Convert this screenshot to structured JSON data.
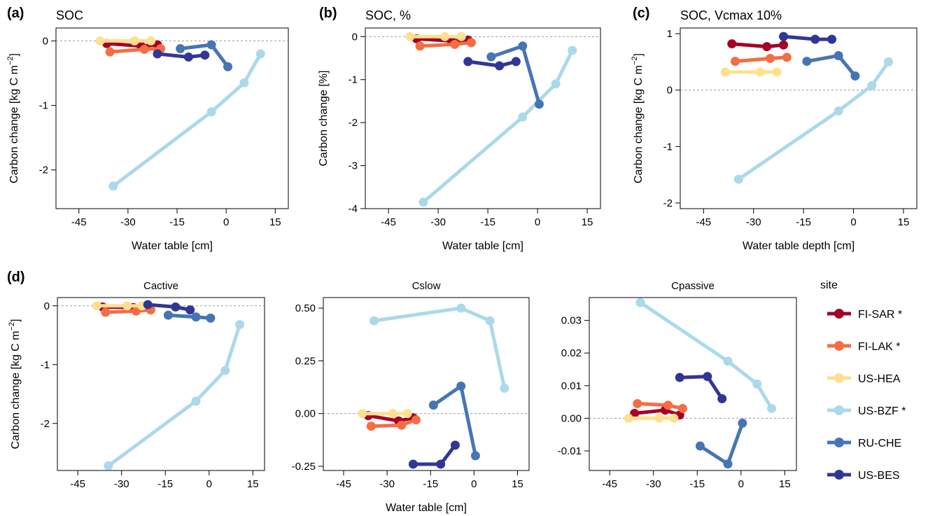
{
  "figure": {
    "panel_labels": [
      "(a)",
      "(b)",
      "(c)",
      "(d)"
    ]
  },
  "chart_data": [
    {
      "id": "a",
      "type": "line",
      "title": "SOC",
      "xlabel": "Water table [cm]",
      "ylabel": "Carbon change [kg C  m",
      "ylabel_sup": "−2",
      "ylabel_close": "]",
      "xlim": [
        -52,
        19
      ],
      "ylim": [
        -2.6,
        0.2
      ],
      "xticks": [
        -45,
        -30,
        -15,
        0,
        15
      ],
      "yticks": [
        -2,
        -1,
        0
      ],
      "zero_line": true,
      "series": [
        {
          "name": "FI-SAR *",
          "x": [
            -36.5,
            -26,
            -21
          ],
          "y": [
            -0.04,
            -0.08,
            -0.06
          ]
        },
        {
          "name": "FI-LAK *",
          "x": [
            -35.5,
            -25,
            -20
          ],
          "y": [
            -0.17,
            -0.13,
            -0.12
          ]
        },
        {
          "name": "US-HEA",
          "x": [
            -38.5,
            -28,
            -23
          ],
          "y": [
            0.0,
            0.0,
            0.0
          ]
        },
        {
          "name": "US-BZF *",
          "x": [
            -34.5,
            -4.5,
            5.5,
            10.5
          ],
          "y": [
            -2.25,
            -1.1,
            -0.65,
            -0.2
          ]
        },
        {
          "name": "RU-CHE",
          "x": [
            -14,
            -4.5,
            0.5
          ],
          "y": [
            -0.12,
            -0.06,
            -0.4
          ]
        },
        {
          "name": "US-BES",
          "x": [
            -21,
            -11.5,
            -6.5
          ],
          "y": [
            -0.2,
            -0.25,
            -0.22
          ]
        }
      ]
    },
    {
      "id": "b",
      "type": "line",
      "title": "SOC, %",
      "xlabel": "Water table [cm]",
      "ylabel": "Carbon change [%]",
      "xlim": [
        -52,
        19
      ],
      "ylim": [
        -4.0,
        0.2
      ],
      "xticks": [
        -45,
        -30,
        -15,
        0,
        15
      ],
      "yticks": [
        -4,
        -3,
        -2,
        -1,
        0
      ],
      "zero_line": true,
      "series": [
        {
          "name": "FI-SAR *",
          "x": [
            -36.5,
            -26,
            -21
          ],
          "y": [
            -0.05,
            -0.1,
            -0.08
          ]
        },
        {
          "name": "FI-LAK *",
          "x": [
            -35.5,
            -25,
            -20
          ],
          "y": [
            -0.22,
            -0.18,
            -0.14
          ]
        },
        {
          "name": "US-HEA",
          "x": [
            -38.5,
            -28,
            -23
          ],
          "y": [
            0.0,
            0.0,
            0.0
          ]
        },
        {
          "name": "US-BZF *",
          "x": [
            -34.5,
            -4.5,
            5.5,
            10.5
          ],
          "y": [
            -3.85,
            -1.87,
            -1.1,
            -0.32
          ]
        },
        {
          "name": "RU-CHE",
          "x": [
            -14,
            -4.5,
            0.5
          ],
          "y": [
            -0.47,
            -0.22,
            -1.57
          ]
        },
        {
          "name": "US-BES",
          "x": [
            -21,
            -11.5,
            -6.5
          ],
          "y": [
            -0.58,
            -0.68,
            -0.58
          ]
        }
      ]
    },
    {
      "id": "c",
      "type": "line",
      "title": "SOC, Vcmax 10%",
      "xlabel": "Water table depth [cm]",
      "ylabel": "Carbon change [kg C  m",
      "ylabel_sup": "−2",
      "ylabel_close": "]",
      "xlim": [
        -52,
        19
      ],
      "ylim": [
        -2.1,
        1.1
      ],
      "xticks": [
        -45,
        -30,
        -15,
        0,
        15
      ],
      "yticks": [
        -2,
        -1,
        0,
        1
      ],
      "zero_line": true,
      "series": [
        {
          "name": "FI-SAR *",
          "x": [
            -36.5,
            -26,
            -21
          ],
          "y": [
            0.82,
            0.77,
            0.8
          ]
        },
        {
          "name": "FI-LAK *",
          "x": [
            -35.5,
            -25,
            -20
          ],
          "y": [
            0.51,
            0.56,
            0.58
          ]
        },
        {
          "name": "US-HEA",
          "x": [
            -38.5,
            -28,
            -23
          ],
          "y": [
            0.32,
            0.32,
            0.32
          ]
        },
        {
          "name": "US-BZF *",
          "x": [
            -34.5,
            -4.5,
            5.5,
            10.5
          ],
          "y": [
            -1.58,
            -0.37,
            0.08,
            0.5
          ]
        },
        {
          "name": "RU-CHE",
          "x": [
            -14,
            -4.5,
            0.5
          ],
          "y": [
            0.51,
            0.61,
            0.25
          ]
        },
        {
          "name": "US-BES",
          "x": [
            -21,
            -11.5,
            -6.5
          ],
          "y": [
            0.95,
            0.9,
            0.9
          ]
        }
      ]
    },
    {
      "id": "d1",
      "type": "line",
      "title": "Cactive",
      "xlabel": "",
      "ylabel": "Carbon change [kg C  m",
      "ylabel_sup": "−2",
      "ylabel_close": "]",
      "xlim": [
        -52,
        19
      ],
      "ylim": [
        -2.8,
        0.14
      ],
      "xticks": [
        -45,
        -30,
        -15,
        0,
        15
      ],
      "yticks": [
        -2,
        -1,
        0
      ],
      "zero_line": true,
      "series": [
        {
          "name": "FI-SAR *",
          "x": [
            -36.5,
            -26,
            -21
          ],
          "y": [
            -0.02,
            -0.03,
            -0.03
          ]
        },
        {
          "name": "FI-LAK *",
          "x": [
            -35.5,
            -25,
            -20
          ],
          "y": [
            -0.11,
            -0.09,
            -0.07
          ]
        },
        {
          "name": "US-HEA",
          "x": [
            -38.5,
            -28,
            -23
          ],
          "y": [
            0.0,
            0.0,
            0.0
          ]
        },
        {
          "name": "US-BZF *",
          "x": [
            -34.5,
            -4.5,
            5.5,
            10.5
          ],
          "y": [
            -2.72,
            -1.62,
            -1.1,
            -0.32
          ]
        },
        {
          "name": "RU-CHE",
          "x": [
            -14,
            -4.5,
            0.5
          ],
          "y": [
            -0.16,
            -0.19,
            -0.21
          ]
        },
        {
          "name": "US-BES",
          "x": [
            -21,
            -11.5,
            -6.5
          ],
          "y": [
            0.02,
            -0.02,
            -0.07
          ]
        }
      ]
    },
    {
      "id": "d2",
      "type": "line",
      "title": "Cslow",
      "xlabel": "Water table [cm]",
      "ylabel": "",
      "xlim": [
        -52,
        19
      ],
      "ylim": [
        -0.27,
        0.55
      ],
      "xticks": [
        -45,
        -30,
        -15,
        0,
        15
      ],
      "yticks": [
        -0.25,
        0.0,
        0.25,
        0.5
      ],
      "ytick_labels": [
        "-0.25",
        "0.00",
        "0.25",
        "0.50"
      ],
      "zero_line": true,
      "series": [
        {
          "name": "FI-SAR *",
          "x": [
            -36.5,
            -26,
            -21
          ],
          "y": [
            -0.01,
            -0.035,
            -0.02
          ]
        },
        {
          "name": "FI-LAK *",
          "x": [
            -35.5,
            -25,
            -20
          ],
          "y": [
            -0.06,
            -0.055,
            -0.03
          ]
        },
        {
          "name": "US-HEA",
          "x": [
            -38.5,
            -28,
            -23
          ],
          "y": [
            0.0,
            0.0,
            0.0
          ]
        },
        {
          "name": "US-BZF *",
          "x": [
            -34.5,
            -4.5,
            5.5,
            10.5
          ],
          "y": [
            0.44,
            0.5,
            0.44,
            0.12
          ]
        },
        {
          "name": "RU-CHE",
          "x": [
            -14,
            -4.5,
            0.5
          ],
          "y": [
            0.04,
            0.13,
            -0.2
          ]
        },
        {
          "name": "US-BES",
          "x": [
            -21,
            -11.5,
            -6.5
          ],
          "y": [
            -0.24,
            -0.24,
            -0.15
          ]
        }
      ]
    },
    {
      "id": "d3",
      "type": "line",
      "title": "Cpassive",
      "xlabel": "",
      "ylabel": "",
      "xlim": [
        -52,
        19
      ],
      "ylim": [
        -0.016,
        0.037
      ],
      "xticks": [
        -45,
        -30,
        -15,
        0,
        15
      ],
      "yticks": [
        -0.01,
        0.0,
        0.01,
        0.02,
        0.03
      ],
      "ytick_labels": [
        "-0.01",
        "0.00",
        "0.01",
        "0.02",
        "0.03"
      ],
      "zero_line": true,
      "series": [
        {
          "name": "FI-SAR *",
          "x": [
            -36.5,
            -26,
            -21
          ],
          "y": [
            0.0015,
            0.0025,
            0.001
          ]
        },
        {
          "name": "FI-LAK *",
          "x": [
            -35.5,
            -25,
            -20
          ],
          "y": [
            0.0045,
            0.004,
            0.003
          ]
        },
        {
          "name": "US-HEA",
          "x": [
            -38.5,
            -28,
            -23
          ],
          "y": [
            0.0,
            0.0,
            0.0
          ]
        },
        {
          "name": "US-BZF *",
          "x": [
            -34.5,
            -4.5,
            5.5,
            10.5
          ],
          "y": [
            0.0355,
            0.0175,
            0.0105,
            0.003
          ]
        },
        {
          "name": "RU-CHE",
          "x": [
            -14,
            -4.5,
            0.5
          ],
          "y": [
            -0.0085,
            -0.014,
            -0.0015
          ]
        },
        {
          "name": "US-BES",
          "x": [
            -21,
            -11.5,
            -6.5
          ],
          "y": [
            0.0125,
            0.0128,
            0.006
          ]
        }
      ]
    }
  ],
  "legend": {
    "title": "site",
    "placement": "right",
    "items": [
      {
        "name": "FI-SAR *",
        "color": "#a50026"
      },
      {
        "name": "FI-LAK *",
        "color": "#f46d43"
      },
      {
        "name": "US-HEA",
        "color": "#fee090"
      },
      {
        "name": "US-BZF *",
        "color": "#abd9e9"
      },
      {
        "name": "RU-CHE",
        "color": "#4575b4"
      },
      {
        "name": "US-BES",
        "color": "#313695"
      }
    ]
  },
  "colors": {
    "FI-SAR *": "#a50026",
    "FI-LAK *": "#f46d43",
    "US-HEA": "#fee090",
    "US-BZF *": "#abd9e9",
    "RU-CHE": "#4575b4",
    "US-BES": "#313695"
  }
}
